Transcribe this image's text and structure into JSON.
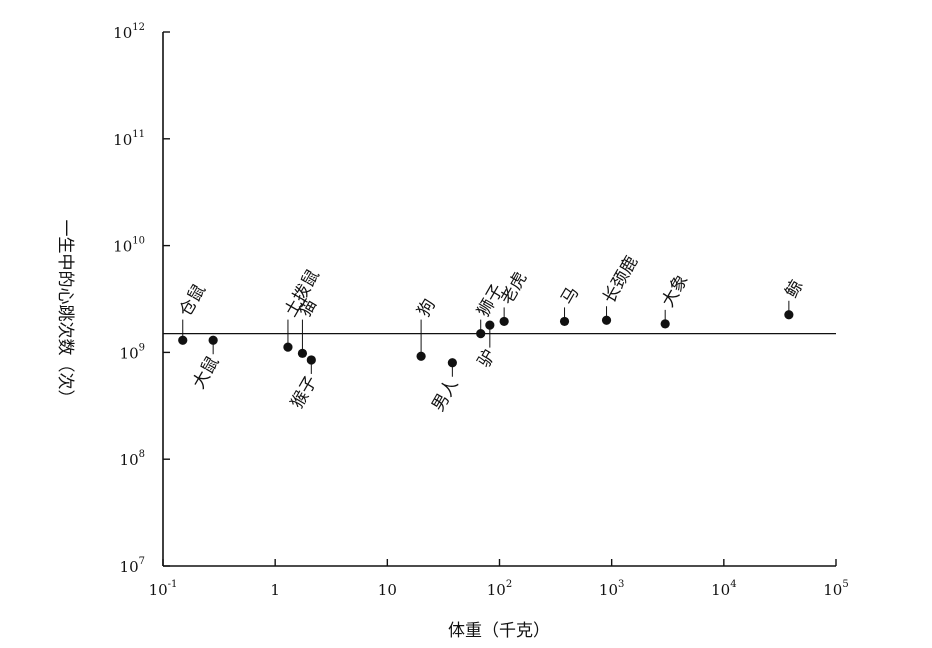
{
  "chart_data": {
    "type": "scatter",
    "title": "",
    "xlabel": "体重（千克）",
    "ylabel": "一生中的心跳次数（次）",
    "x_scale": "log",
    "y_scale": "log",
    "xlim": [
      0.1,
      100000
    ],
    "ylim": [
      10000000,
      1000000000000
    ],
    "x_ticks": [
      {
        "value": 0.1,
        "base": "10",
        "exp": "-1"
      },
      {
        "value": 1,
        "base": "1",
        "exp": ""
      },
      {
        "value": 10,
        "base": "10",
        "exp": ""
      },
      {
        "value": 100,
        "base": "10",
        "exp": "2"
      },
      {
        "value": 1000,
        "base": "10",
        "exp": "3"
      },
      {
        "value": 10000,
        "base": "10",
        "exp": "4"
      },
      {
        "value": 100000,
        "base": "10",
        "exp": "5"
      }
    ],
    "y_ticks": [
      {
        "value": 10000000,
        "base": "10",
        "exp": "7"
      },
      {
        "value": 100000000,
        "base": "10",
        "exp": "8"
      },
      {
        "value": 1000000000,
        "base": "10",
        "exp": "9"
      },
      {
        "value": 10000000000,
        "base": "10",
        "exp": "10"
      },
      {
        "value": 100000000000,
        "base": "10",
        "exp": "11"
      },
      {
        "value": 1000000000000,
        "base": "10",
        "exp": "12"
      }
    ],
    "reference_line_y": 1500000000,
    "grid": false,
    "points": [
      {
        "label": "仓鼠",
        "x": 0.15,
        "y": 1300000000,
        "label_pos": "above"
      },
      {
        "label": "大鼠",
        "x": 0.28,
        "y": 1300000000,
        "label_pos": "below"
      },
      {
        "label": "土拨鼠",
        "x": 1.3,
        "y": 1120000000,
        "label_pos": "above"
      },
      {
        "label": "猫",
        "x": 1.75,
        "y": 980000000,
        "label_pos": "above"
      },
      {
        "label": "猴子",
        "x": 2.1,
        "y": 850000000,
        "label_pos": "below"
      },
      {
        "label": "狗",
        "x": 20,
        "y": 920000000,
        "label_pos": "above"
      },
      {
        "label": "男人",
        "x": 38,
        "y": 800000000,
        "label_pos": "below"
      },
      {
        "label": "狮子",
        "x": 68,
        "y": 1500000000,
        "label_pos": "above"
      },
      {
        "label": "驴",
        "x": 82,
        "y": 1800000000,
        "label_pos": "below"
      },
      {
        "label": "老虎",
        "x": 110,
        "y": 1950000000,
        "label_pos": "above"
      },
      {
        "label": "马",
        "x": 380,
        "y": 1950000000,
        "label_pos": "above"
      },
      {
        "label": "长颈鹿",
        "x": 900,
        "y": 2000000000,
        "label_pos": "above"
      },
      {
        "label": "大象",
        "x": 3000,
        "y": 1850000000,
        "label_pos": "above"
      },
      {
        "label": "鲸",
        "x": 38000,
        "y": 2250000000,
        "label_pos": "above"
      }
    ]
  }
}
